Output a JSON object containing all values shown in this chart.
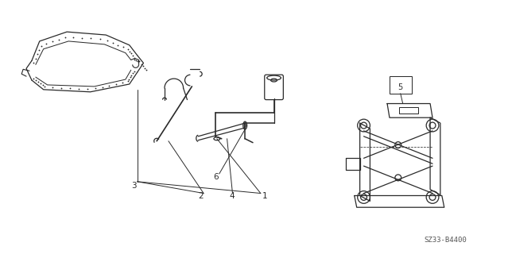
{
  "bg_color": "#ffffff",
  "line_color": "#2a2a2a",
  "label_color": "#2a2a2a",
  "part_number_text": "SZ33-B4400",
  "figsize": [
    6.39,
    3.2
  ],
  "dpi": 100
}
